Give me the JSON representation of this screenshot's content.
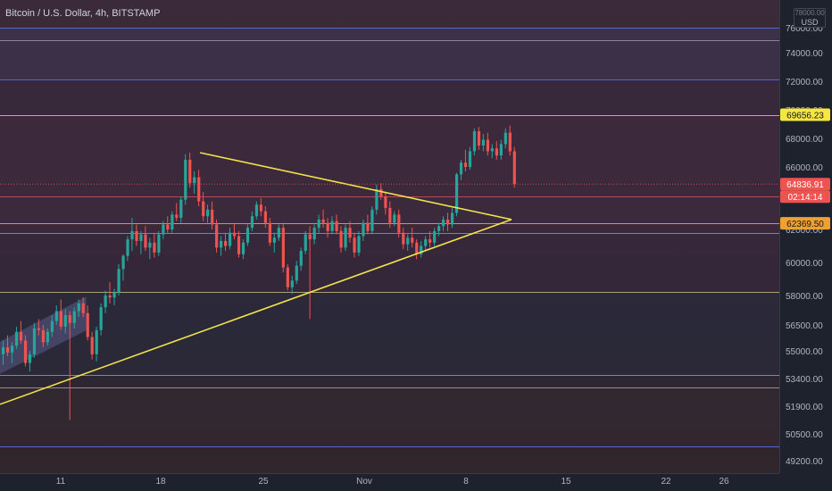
{
  "header": {
    "symbol_title": "Bitcoin / U.S. Dollar, 4h, BITSTAMP",
    "currency_top": "78000.00",
    "currency": "USD"
  },
  "colors": {
    "background": "#1e222d",
    "up": "#26a69a",
    "down": "#ef5350",
    "trendline": "#f2e34c",
    "level_yellow": "#d6c24a",
    "level_blue": "#5b6ee1",
    "level_orange": "#f0a030",
    "channel": "#8e8bd6",
    "axis_text": "#b2b5be"
  },
  "chart_data": {
    "type": "candlestick",
    "symbol": "Bitcoin / U.S. Dollar",
    "interval": "4h",
    "exchange": "BITSTAMP",
    "x_ticks": [
      "11",
      "18",
      "25",
      "Nov",
      "8",
      "15",
      "22",
      "26"
    ],
    "y_ticks": [
      "78000.00",
      "76000.00",
      "74000.00",
      "72000.00",
      "70000.00",
      "68000.00",
      "66000.00",
      "64000.00",
      "62000.00",
      "60000.00",
      "58000.00",
      "56500.00",
      "55000.00",
      "53400.00",
      "51900.00",
      "50500.00",
      "49200.00"
    ],
    "price_labels": [
      {
        "label": "69656.23",
        "value": 69656.23,
        "kind": "level",
        "color": "#f5e642"
      },
      {
        "label": "64836.91",
        "value": 64836.91,
        "kind": "last-price",
        "color": "#ef5350"
      },
      {
        "label": "02:14:14",
        "kind": "countdown",
        "color": "#ef5350"
      },
      {
        "label": "62369.50",
        "value": 62369.5,
        "kind": "level",
        "color": "#f0a030"
      }
    ],
    "horizontal_levels": [
      76000,
      75000,
      72100,
      69656.23,
      64000,
      62369.5,
      61800,
      58200,
      53600,
      52900,
      49900
    ],
    "trendlines": [
      {
        "from": {
          "x": "Oct 20",
          "y": 67000
        },
        "to": {
          "x": "Nov 10",
          "y": 62600
        }
      },
      {
        "from": {
          "x": "Oct 6",
          "y": 52000
        },
        "to": {
          "x": "Nov 10",
          "y": 62600
        }
      }
    ],
    "series": [
      {
        "name": "BTCUSD",
        "candles": [
          [
            54800,
            55600,
            54200,
            55200
          ],
          [
            55200,
            55900,
            54700,
            54900
          ],
          [
            54900,
            55500,
            54300,
            55300
          ],
          [
            55300,
            56400,
            55100,
            56100
          ],
          [
            56100,
            56700,
            55400,
            55600
          ],
          [
            55600,
            55900,
            54100,
            54300
          ],
          [
            54300,
            55000,
            53800,
            54800
          ],
          [
            54800,
            56600,
            54600,
            56300
          ],
          [
            56300,
            56800,
            55900,
            56200
          ],
          [
            56200,
            56500,
            55200,
            55500
          ],
          [
            55500,
            56300,
            55300,
            56100
          ],
          [
            56100,
            57000,
            55800,
            56700
          ],
          [
            56700,
            57500,
            56500,
            57200
          ],
          [
            57200,
            57800,
            56200,
            56400
          ],
          [
            56400,
            57300,
            56000,
            57000
          ],
          [
            57000,
            57200,
            51200,
            56600
          ],
          [
            56600,
            57400,
            56300,
            57200
          ],
          [
            57200,
            57800,
            56900,
            57600
          ],
          [
            57600,
            57900,
            56900,
            57100
          ],
          [
            57100,
            57500,
            55600,
            55800
          ],
          [
            55800,
            56100,
            54500,
            54800
          ],
          [
            54800,
            56400,
            54400,
            56200
          ],
          [
            56200,
            57600,
            55900,
            57400
          ],
          [
            57400,
            58300,
            57100,
            58000
          ],
          [
            58000,
            58800,
            57600,
            57900
          ],
          [
            57900,
            58400,
            57500,
            58200
          ],
          [
            58200,
            59900,
            58000,
            59600
          ],
          [
            59600,
            60500,
            58900,
            60400
          ],
          [
            60400,
            61600,
            60100,
            61400
          ],
          [
            61400,
            62700,
            60700,
            61900
          ],
          [
            61900,
            62300,
            61000,
            61300
          ],
          [
            61300,
            61900,
            60500,
            61700
          ],
          [
            61700,
            62200,
            60700,
            60900
          ],
          [
            60900,
            61500,
            60200,
            61200
          ],
          [
            61200,
            61800,
            60300,
            60600
          ],
          [
            60600,
            61900,
            60400,
            61700
          ],
          [
            61700,
            62500,
            61400,
            62300
          ],
          [
            62300,
            62800,
            61800,
            62000
          ],
          [
            62000,
            63100,
            61800,
            62900
          ],
          [
            62900,
            63600,
            62500,
            62700
          ],
          [
            62700,
            64000,
            62400,
            63800
          ],
          [
            63800,
            66900,
            63500,
            66500
          ],
          [
            66500,
            67000,
            64600,
            64900
          ],
          [
            64900,
            65700,
            64200,
            65300
          ],
          [
            65300,
            65800,
            63400,
            63700
          ],
          [
            63700,
            64300,
            62500,
            62800
          ],
          [
            62800,
            63500,
            62400,
            63200
          ],
          [
            63200,
            63700,
            62000,
            62300
          ],
          [
            62300,
            62600,
            60600,
            60900
          ],
          [
            60900,
            61600,
            60400,
            61300
          ],
          [
            61300,
            61800,
            60700,
            61000
          ],
          [
            61000,
            62100,
            60800,
            61800
          ],
          [
            61800,
            62400,
            61400,
            61600
          ],
          [
            61600,
            61900,
            60300,
            60500
          ],
          [
            60500,
            61400,
            60200,
            61200
          ],
          [
            61200,
            62300,
            61000,
            62100
          ],
          [
            62100,
            63100,
            61900,
            62800
          ],
          [
            62800,
            63700,
            62600,
            63500
          ],
          [
            63500,
            63900,
            62800,
            63100
          ],
          [
            63100,
            63400,
            62100,
            62400
          ],
          [
            62400,
            62700,
            61000,
            61200
          ],
          [
            61200,
            61800,
            60600,
            61500
          ],
          [
            61500,
            62300,
            61300,
            62100
          ],
          [
            62100,
            62400,
            59400,
            59700
          ],
          [
            59700,
            59900,
            58300,
            58500
          ],
          [
            58500,
            59200,
            58100,
            58900
          ],
          [
            58900,
            60100,
            58700,
            59800
          ],
          [
            59800,
            60900,
            59500,
            60700
          ],
          [
            60700,
            61900,
            60500,
            61700
          ],
          [
            61700,
            62200,
            56800,
            61400
          ],
          [
            61400,
            62300,
            61100,
            62100
          ],
          [
            62100,
            62900,
            61800,
            62600
          ],
          [
            62600,
            63200,
            62100,
            62400
          ],
          [
            62400,
            62700,
            61500,
            61900
          ],
          [
            61900,
            62800,
            61700,
            62500
          ],
          [
            62500,
            62900,
            61700,
            61900
          ],
          [
            61900,
            62200,
            60600,
            60900
          ],
          [
            60900,
            62300,
            60700,
            62100
          ],
          [
            62100,
            62500,
            61200,
            61500
          ],
          [
            61500,
            61800,
            60300,
            60600
          ],
          [
            60600,
            61900,
            60400,
            61600
          ],
          [
            61600,
            62600,
            61300,
            62400
          ],
          [
            62400,
            62900,
            61700,
            61900
          ],
          [
            61900,
            63400,
            61700,
            63200
          ],
          [
            63200,
            64800,
            62900,
            64500
          ],
          [
            64500,
            64900,
            63800,
            64000
          ],
          [
            64000,
            64300,
            62900,
            63300
          ],
          [
            63300,
            63700,
            62100,
            62400
          ],
          [
            62400,
            63100,
            62200,
            62900
          ],
          [
            62900,
            63200,
            61500,
            61800
          ],
          [
            61800,
            62100,
            60800,
            61100
          ],
          [
            61100,
            61700,
            60700,
            61500
          ],
          [
            61500,
            62100,
            60900,
            61200
          ],
          [
            61200,
            61400,
            60200,
            60500
          ],
          [
            60500,
            61300,
            60300,
            61000
          ],
          [
            61000,
            61600,
            60700,
            61400
          ],
          [
            61400,
            61900,
            60900,
            61200
          ],
          [
            61200,
            62100,
            61000,
            61900
          ],
          [
            61900,
            62400,
            61600,
            62200
          ],
          [
            62200,
            62800,
            61900,
            62600
          ],
          [
            62600,
            63000,
            61900,
            62300
          ],
          [
            62300,
            63300,
            62100,
            63000
          ],
          [
            63000,
            65600,
            62800,
            65500
          ],
          [
            65500,
            66500,
            65100,
            66300
          ],
          [
            66300,
            67200,
            65700,
            66000
          ],
          [
            66000,
            67400,
            65800,
            67100
          ],
          [
            67100,
            68700,
            66800,
            68500
          ],
          [
            68500,
            68800,
            67200,
            67500
          ],
          [
            67500,
            68300,
            67100,
            67900
          ],
          [
            67900,
            68400,
            66800,
            67100
          ],
          [
            67100,
            67600,
            66600,
            67300
          ],
          [
            67300,
            67800,
            66500,
            66800
          ],
          [
            66800,
            67900,
            66500,
            67600
          ],
          [
            67600,
            68700,
            67300,
            68400
          ],
          [
            68400,
            68900,
            66800,
            67100
          ],
          [
            67100,
            67400,
            64600,
            64836.91
          ]
        ]
      }
    ]
  }
}
